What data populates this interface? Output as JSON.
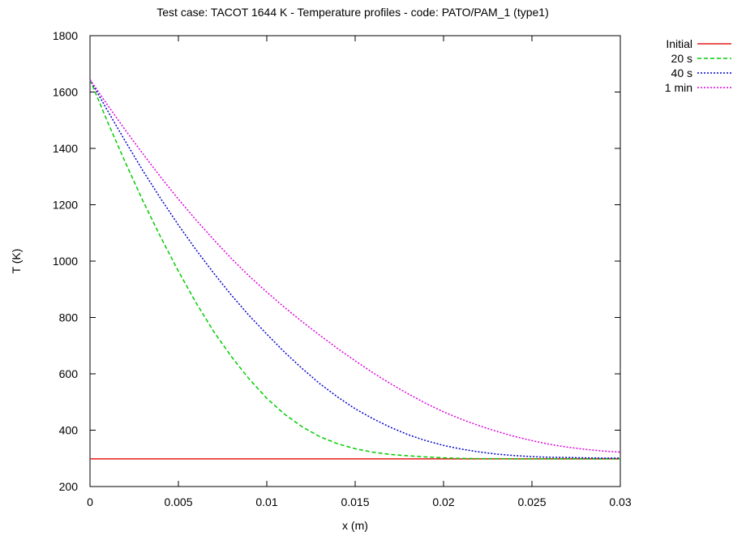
{
  "chart_data": {
    "type": "line",
    "title": "Test case: TACOT 1644 K - Temperature profiles - code: PATO/PAM_1 (type1)",
    "xlabel": "x (m)",
    "ylabel": "T (K)",
    "xlim": [
      0,
      0.03
    ],
    "ylim": [
      200,
      1800
    ],
    "xticks": [
      0,
      0.005,
      0.01,
      0.015,
      0.02,
      0.025,
      0.03
    ],
    "xtick_labels": [
      "0",
      "0.005",
      "0.01",
      "0.015",
      "0.02",
      "0.025",
      "0.03"
    ],
    "yticks": [
      200,
      400,
      600,
      800,
      1000,
      1200,
      1400,
      1600,
      1800
    ],
    "ytick_labels": [
      "200",
      "400",
      "600",
      "800",
      "1000",
      "1200",
      "1400",
      "1600",
      "1800"
    ],
    "grid": false,
    "legend_position": "top-right",
    "x": [
      0,
      0.001,
      0.002,
      0.003,
      0.004,
      0.005,
      0.006,
      0.007,
      0.008,
      0.009,
      0.01,
      0.011,
      0.012,
      0.013,
      0.014,
      0.015,
      0.016,
      0.017,
      0.018,
      0.019,
      0.02,
      0.021,
      0.022,
      0.023,
      0.024,
      0.025,
      0.026,
      0.027,
      0.028,
      0.029,
      0.03
    ],
    "series": [
      {
        "name": "Initial",
        "color": "#e41a1c",
        "dash": "solid",
        "values": [
          298,
          298,
          298,
          298,
          298,
          298,
          298,
          298,
          298,
          298,
          298,
          298,
          298,
          298,
          298,
          298,
          298,
          298,
          298,
          298,
          298,
          298,
          298,
          298,
          298,
          298,
          298,
          298,
          298,
          298,
          298
        ]
      },
      {
        "name": "20 s",
        "color": "#00cc00",
        "dash": "dashed",
        "values": [
          1644,
          1493,
          1350,
          1213,
          1085,
          964,
          852,
          750,
          661,
          582,
          513,
          457,
          412,
          377,
          352,
          334,
          322,
          314,
          309,
          305,
          302,
          300,
          299,
          299,
          298,
          298,
          298,
          298,
          298,
          298,
          298
        ]
      },
      {
        "name": "40 s",
        "color": "#0000cc",
        "dash": "dotted",
        "values": [
          1644,
          1533,
          1425,
          1320,
          1222,
          1128,
          1040,
          957,
          879,
          807,
          741,
          677,
          619,
          565,
          518,
          476,
          441,
          410,
          384,
          363,
          346,
          333,
          323,
          315,
          310,
          306,
          304,
          303,
          302,
          301,
          301
        ]
      },
      {
        "name": "1 min",
        "color": "#dd00dd",
        "dash": "dotted",
        "values": [
          1644,
          1553,
          1465,
          1380,
          1298,
          1220,
          1146,
          1076,
          1009,
          947,
          890,
          836,
          785,
          737,
          690,
          646,
          604,
          565,
          529,
          495,
          465,
          439,
          416,
          396,
          378,
          363,
          350,
          340,
          332,
          326,
          322
        ]
      }
    ]
  }
}
